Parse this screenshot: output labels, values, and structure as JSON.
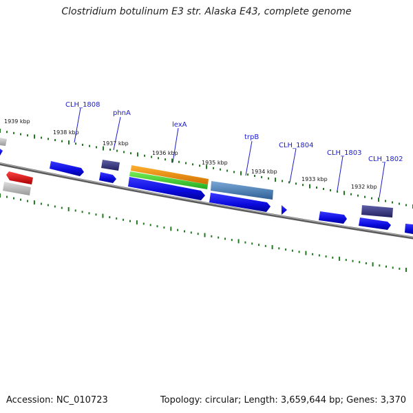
{
  "title": "Clostridium botulinum E3 str. Alaska E43, complete genome",
  "footer": {
    "accession": "Accession: NC_010723",
    "topology": "Topology: circular; Length: 3,659,644 bp; Genes: 3,370"
  },
  "kbp_labels": [
    "1939 kbp",
    "1938 kbp",
    "1937 kbp",
    "1936 kbp",
    "1935 kbp",
    "1934 kbp",
    "1933 kbp",
    "1932 kbp"
  ],
  "gene_labels": [
    "CLH_1808",
    "phnA",
    "lexA",
    "trpB",
    "CLH_1804",
    "CLH_1803",
    "CLH_1802"
  ],
  "colors": {
    "backbone": "#808080",
    "tick": "#1f7a1f",
    "label": "#1a1acc",
    "cds": "#1010ee",
    "highlight": "#ee1111",
    "grey_feature": "#b8b8b8",
    "dark_feature": "#3a3a80",
    "orange_feature": "#f08c00",
    "green_feature": "#44cc33",
    "steel_feature": "#4a7fb5"
  }
}
